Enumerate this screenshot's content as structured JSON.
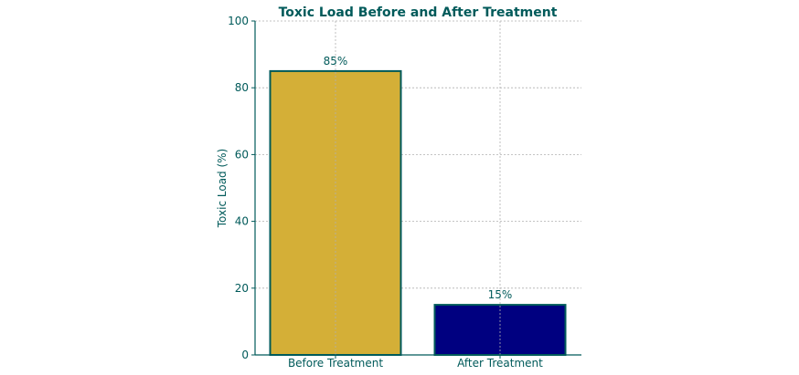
{
  "chart_data": {
    "type": "bar",
    "title": "Toxic Load Before and After Treatment",
    "xlabel": "",
    "ylabel": "Toxic Load (%)",
    "categories": [
      "Before Treatment",
      "After Treatment"
    ],
    "values": [
      85,
      15
    ],
    "data_labels": [
      "85%",
      "15%"
    ],
    "bar_colors": [
      "#d4af37",
      "#000080"
    ],
    "ylim": [
      0,
      100
    ],
    "yticks": [
      0,
      20,
      40,
      60,
      80,
      100
    ],
    "grid": true
  }
}
